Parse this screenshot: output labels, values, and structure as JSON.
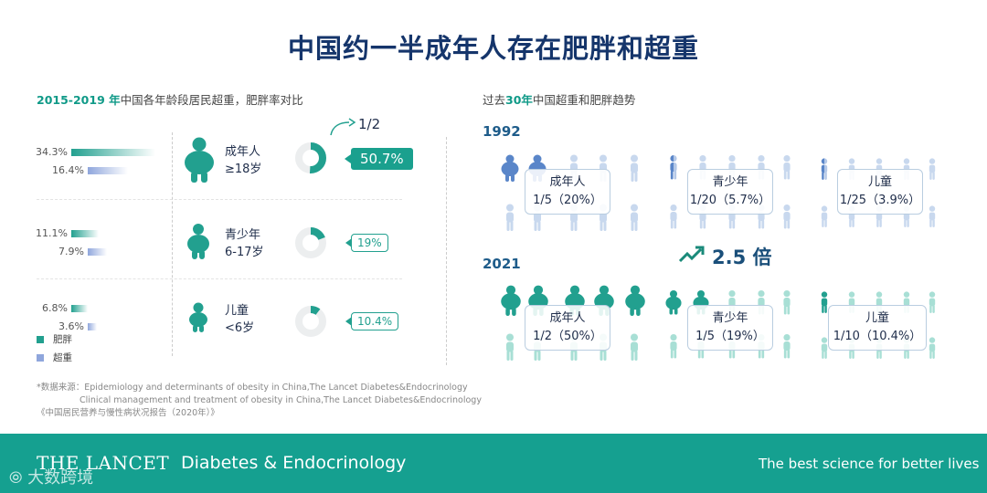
{
  "title": "中国约一半成年人存在肥胖和超重",
  "left": {
    "subtitle_years": "2015-2019 年",
    "subtitle_rest": "中国各年龄段居民超重，肥胖率对比",
    "groups": [
      {
        "label": "成年人",
        "age": "≥18岁",
        "obese": "34.3%",
        "over": "16.4%",
        "callout": "50.7%"
      },
      {
        "label": "青少年",
        "age": "6-17岁",
        "obese": "11.1%",
        "over": "7.9%",
        "callout": "19%"
      },
      {
        "label": "儿童",
        "age": "<6岁",
        "obese": "6.8%",
        "over": "3.6%",
        "callout": "10.4%"
      }
    ],
    "half_note": "1/2",
    "legend": {
      "obese": "肥胖",
      "over": "超重"
    }
  },
  "right": {
    "subtitle_pre": "过去",
    "subtitle_hl": "30年",
    "subtitle_post": "中国超重和肥胖趋势",
    "year1": "1992",
    "year2": "2021",
    "growth": "2.5 倍",
    "y1": [
      {
        "label": "成年人",
        "value": "1/5（20%）"
      },
      {
        "label": "青少年",
        "value": "1/20（5.7%）"
      },
      {
        "label": "儿童",
        "value": "1/25（3.9%）"
      }
    ],
    "y2": [
      {
        "label": "成年人",
        "value": "1/2（50%）"
      },
      {
        "label": "青少年",
        "value": "1/5（19%）"
      },
      {
        "label": "儿童",
        "value": "1/10（10.4%）"
      }
    ]
  },
  "sources": {
    "line1": "*数据来源：Epidemiology and determinants of obesity in China,The Lancet Diabetes&Endocrinology",
    "line2": "Clinical management and treatment of obesity in China,The Lancet Diabetes&Endocrinology",
    "line3": "《中国居民营养与慢性病状况报告（2020年）》"
  },
  "footer": {
    "brand": "THE LANCET",
    "journal": "Diabetes & Endocrinology",
    "tagline": "The best science for better lives",
    "watermark": "大数跨境"
  },
  "chart_data": {
    "type": "bar",
    "title": "2015-2019 年中国各年龄段居民超重，肥胖率对比",
    "categories": [
      "成年人 ≥18岁",
      "青少年 6-17岁",
      "儿童 <6岁"
    ],
    "series": [
      {
        "name": "肥胖",
        "values": [
          34.3,
          11.1,
          6.8
        ]
      },
      {
        "name": "超重",
        "values": [
          16.4,
          7.9,
          3.6
        ]
      }
    ],
    "totals": [
      50.7,
      19,
      10.4
    ],
    "trend": {
      "years": [
        "1992",
        "2021"
      ],
      "groups": [
        "成年人",
        "青少年",
        "儿童"
      ],
      "share_1992": [
        20,
        5.7,
        3.9
      ],
      "share_2021": [
        50,
        19,
        10.4
      ]
    },
    "colors": {
      "obese": "#22a08f",
      "over": "#8fa6dc",
      "highlight_blue": "#5a86c9",
      "light_blue": "#c8d8ee",
      "light_teal": "#a8dfd5"
    }
  }
}
